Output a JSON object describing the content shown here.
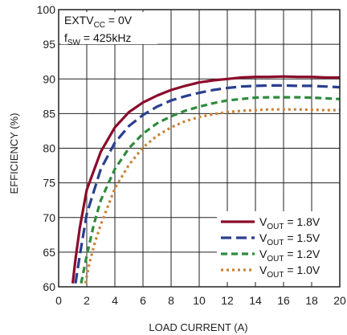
{
  "chart_data": {
    "type": "line",
    "xlabel": "LOAD CURRENT (A)",
    "ylabel": "EFFICIENCY (%)",
    "xlim": [
      0,
      20
    ],
    "ylim": [
      60,
      100
    ],
    "xticks": [
      0,
      2,
      4,
      6,
      8,
      10,
      12,
      14,
      16,
      18,
      20
    ],
    "yticks": [
      60,
      65,
      70,
      75,
      80,
      85,
      90,
      95,
      100
    ],
    "grid": true,
    "legend_position": "bottom-right",
    "annotations": [
      {
        "main": "EXTV",
        "sub": "CC",
        "rest": " = 0V"
      },
      {
        "main": "f",
        "sub": "SW",
        "rest": " = 425kHz"
      }
    ],
    "series": [
      {
        "name_main": "V",
        "name_sub": "OUT",
        "name_rest": " = 1.8V",
        "color": "#8b0a2a",
        "dash": "solid",
        "x": [
          1.0,
          1.2,
          1.5,
          2.0,
          3.0,
          4.0,
          5.0,
          6.0,
          7.0,
          8.0,
          9.0,
          10.0,
          11.0,
          12.0,
          13.0,
          14.0,
          15.0,
          16.0,
          17.0,
          18.0,
          19.0,
          20.0
        ],
        "y": [
          60.5,
          64.0,
          68.5,
          74.0,
          79.5,
          83.0,
          85.2,
          86.6,
          87.6,
          88.4,
          89.0,
          89.5,
          89.8,
          90.0,
          90.2,
          90.3,
          90.3,
          90.35,
          90.3,
          90.3,
          90.2,
          90.2
        ]
      },
      {
        "name_main": "V",
        "name_sub": "OUT",
        "name_rest": " = 1.5V",
        "color": "#2a3f8e",
        "dash": "long",
        "x": [
          1.2,
          1.5,
          2.0,
          3.0,
          4.0,
          5.0,
          6.0,
          7.0,
          8.0,
          9.0,
          10.0,
          11.0,
          12.0,
          13.0,
          14.0,
          15.0,
          16.0,
          17.0,
          18.0,
          19.0,
          20.0
        ],
        "y": [
          60.5,
          64.5,
          70.5,
          77.0,
          80.8,
          83.2,
          84.8,
          86.0,
          86.9,
          87.5,
          88.0,
          88.4,
          88.7,
          88.9,
          89.0,
          89.05,
          89.05,
          89.0,
          89.0,
          88.9,
          88.8
        ]
      },
      {
        "name_main": "V",
        "name_sub": "OUT",
        "name_rest": " = 1.2V",
        "color": "#2e8b3e",
        "dash": "medium",
        "x": [
          1.6,
          2.0,
          2.5,
          3.0,
          4.0,
          5.0,
          6.0,
          7.0,
          8.0,
          9.0,
          10.0,
          11.0,
          12.0,
          13.0,
          14.0,
          15.0,
          16.0,
          17.0,
          18.0,
          19.0,
          20.0
        ],
        "y": [
          60.5,
          64.5,
          69.0,
          72.5,
          77.0,
          80.0,
          82.1,
          83.6,
          84.6,
          85.4,
          86.0,
          86.5,
          86.9,
          87.1,
          87.3,
          87.35,
          87.35,
          87.35,
          87.3,
          87.2,
          87.1
        ]
      },
      {
        "name_main": "V",
        "name_sub": "OUT",
        "name_rest": " = 1.0V",
        "color": "#c8833a",
        "dash": "dotted",
        "x": [
          1.9,
          2.2,
          2.6,
          3.0,
          4.0,
          5.0,
          6.0,
          7.0,
          8.0,
          9.0,
          10.0,
          11.0,
          12.0,
          13.0,
          14.0,
          15.0,
          16.0,
          17.0,
          18.0,
          19.0,
          20.0
        ],
        "y": [
          60.5,
          63.5,
          66.5,
          69.0,
          74.2,
          77.6,
          80.1,
          81.8,
          83.0,
          83.9,
          84.5,
          84.9,
          85.2,
          85.4,
          85.5,
          85.6,
          85.6,
          85.6,
          85.55,
          85.5,
          85.5
        ]
      }
    ]
  }
}
